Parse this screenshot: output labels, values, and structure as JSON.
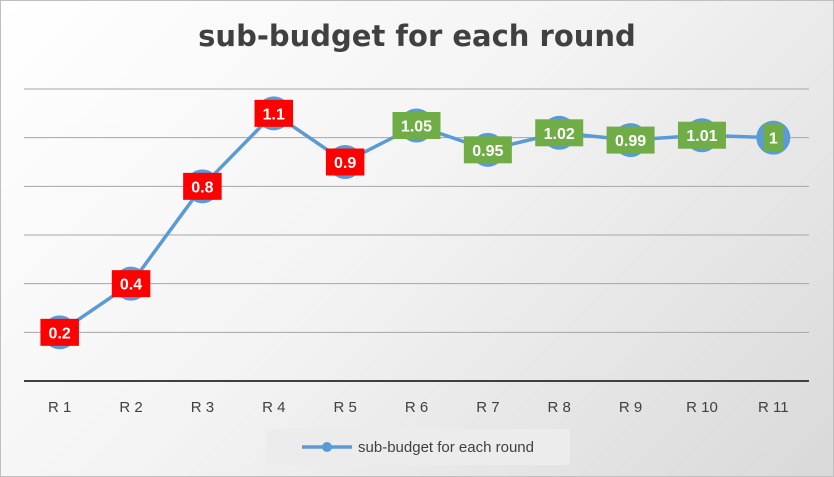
{
  "chart_data": {
    "type": "line",
    "title": "sub-budget for each round",
    "categories": [
      "R 1",
      "R 2",
      "R 3",
      "R 4",
      "R 5",
      "R 6",
      "R 7",
      "R 8",
      "R 9",
      "R 10",
      "R 11"
    ],
    "series": [
      {
        "name": "sub-budget for each round",
        "values": [
          0.2,
          0.4,
          0.8,
          1.1,
          0.9,
          1.05,
          0.95,
          1.02,
          0.99,
          1.01,
          1
        ],
        "color": "#5b9bd5"
      }
    ],
    "data_labels": [
      "0.2",
      "0.4",
      "0.8",
      "1.1",
      "0.9",
      "1.05",
      "0.95",
      "1.02",
      "0.99",
      "1.01",
      "1"
    ],
    "label_colors": [
      "#ff0000",
      "#ff0000",
      "#ff0000",
      "#ff0000",
      "#ff0000",
      "#70ad47",
      "#70ad47",
      "#70ad47",
      "#70ad47",
      "#70ad47",
      "#70ad47"
    ],
    "ylim": [
      0,
      1.2
    ],
    "y_gridline_step": 0.2,
    "y_tick_labels_shown": false,
    "grid": true,
    "legend_position": "bottom",
    "xlabel": "",
    "ylabel": ""
  }
}
